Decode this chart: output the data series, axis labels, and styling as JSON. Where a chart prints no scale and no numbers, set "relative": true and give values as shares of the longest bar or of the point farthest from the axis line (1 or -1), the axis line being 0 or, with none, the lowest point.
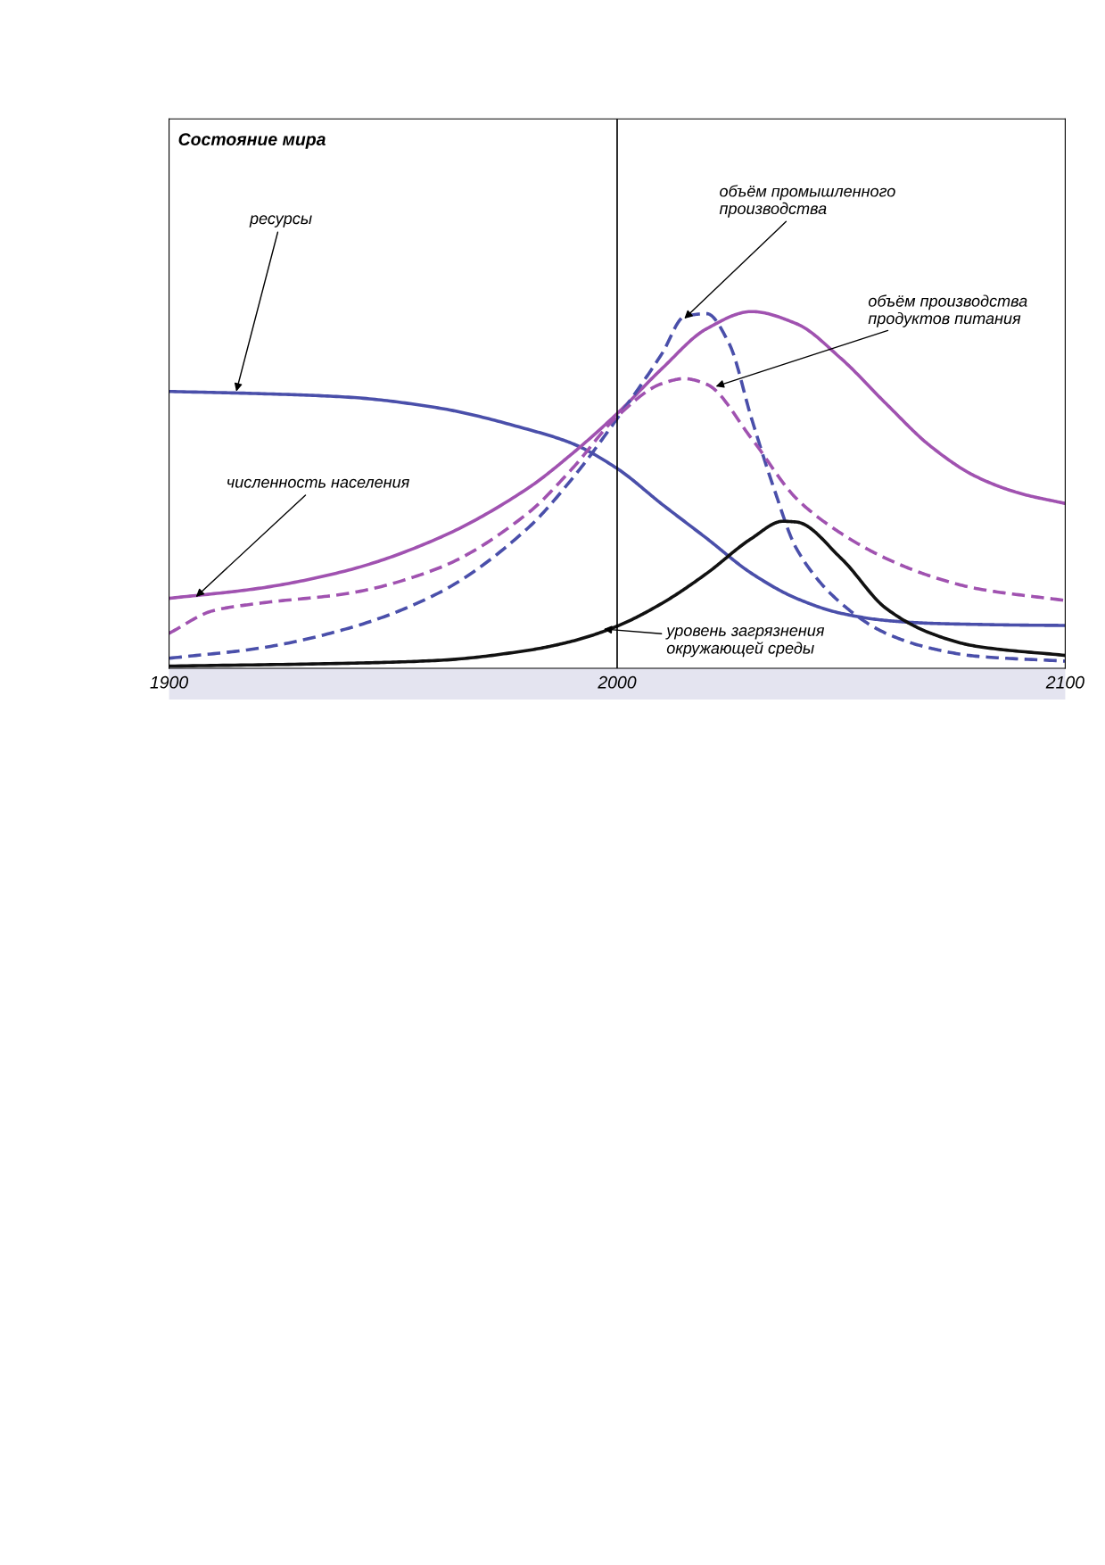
{
  "chart_data": {
    "type": "line",
    "title": "Состояние мира",
    "relative": true,
    "x": [
      1900,
      1920,
      1940,
      1960,
      1980,
      1990,
      2000,
      2010,
      2020,
      2030,
      2040,
      2050,
      2060,
      2070,
      2080,
      2090,
      2100
    ],
    "xlim": [
      1900,
      2100
    ],
    "xticks": [
      1900,
      2000,
      2100
    ],
    "grid": false,
    "legend": false,
    "marker": "none",
    "series": [
      {
        "color": "#4a4faa",
        "line_style": "solid",
        "values": [
          0.776,
          0.77,
          0.76,
          0.73,
          0.67,
          0.63,
          0.56,
          0.46,
          0.364,
          0.266,
          0.196,
          0.154,
          0.134,
          0.126,
          0.123,
          0.121,
          0.12
        ]
      },
      {
        "color": "#a052b0",
        "line_style": "solid",
        "values": [
          0.196,
          0.224,
          0.275,
          0.364,
          0.504,
          0.602,
          0.714,
          0.84,
          0.952,
          1,
          0.966,
          0.868,
          0.742,
          0.622,
          0.538,
          0.49,
          0.462
        ]
      },
      {
        "color": "#4a4faa",
        "line_style": "dashed",
        "x": [
          1900,
          1920,
          1940,
          1960,
          1980,
          1990,
          2000,
          2010,
          2015,
          2020,
          2025,
          2030,
          2035,
          2040,
          2050,
          2060,
          2070,
          2080,
          2100
        ],
        "values": [
          0.028,
          0.056,
          0.112,
          0.21,
          0.392,
          0.532,
          0.7,
          0.882,
          0.986,
          0.994,
          0.91,
          0.7,
          0.504,
          0.336,
          0.182,
          0.098,
          0.056,
          0.034,
          0.02
        ]
      },
      {
        "color": "#a052b0",
        "line_style": "dashed",
        "x": [
          1900,
          1910,
          1920,
          1940,
          1960,
          1980,
          1990,
          2000,
          2010,
          2015,
          2020,
          2030,
          2040,
          2050,
          2060,
          2070,
          2080,
          2100
        ],
        "values": [
          0.098,
          0.162,
          0.182,
          0.21,
          0.28,
          0.434,
          0.56,
          0.706,
          0.798,
          0.812,
          0.796,
          0.644,
          0.476,
          0.378,
          0.308,
          0.258,
          0.224,
          0.19
        ]
      },
      {
        "color": "#111111",
        "line_style": "solid",
        "x": [
          1900,
          1940,
          1960,
          1980,
          1990,
          2000,
          2010,
          2020,
          2030,
          2037,
          2040,
          2050,
          2060,
          2070,
          2080,
          2100
        ],
        "values": [
          0.006,
          0.014,
          0.022,
          0.05,
          0.076,
          0.118,
          0.182,
          0.266,
          0.364,
          0.412,
          0.41,
          0.308,
          0.168,
          0.098,
          0.062,
          0.036
        ]
      }
    ],
    "ref_lines": [
      {
        "axis": "x",
        "value": 2000,
        "color": "#000000",
        "line_style": "solid"
      }
    ],
    "annotations": [
      {
        "text": "ресурсы",
        "x": 1915,
        "y": 0.776
      },
      {
        "text": "численность населения",
        "x": 1906,
        "y": 0.2
      },
      {
        "text": "объём промышленного\nпроизводства",
        "x": 2015,
        "y": 0.98
      },
      {
        "text": "объём производства\nпродуктов питания",
        "x": 2022,
        "y": 0.79
      },
      {
        "text": "уровень загрязнения\nокружающей среды",
        "x": 1997,
        "y": 0.11
      }
    ]
  }
}
